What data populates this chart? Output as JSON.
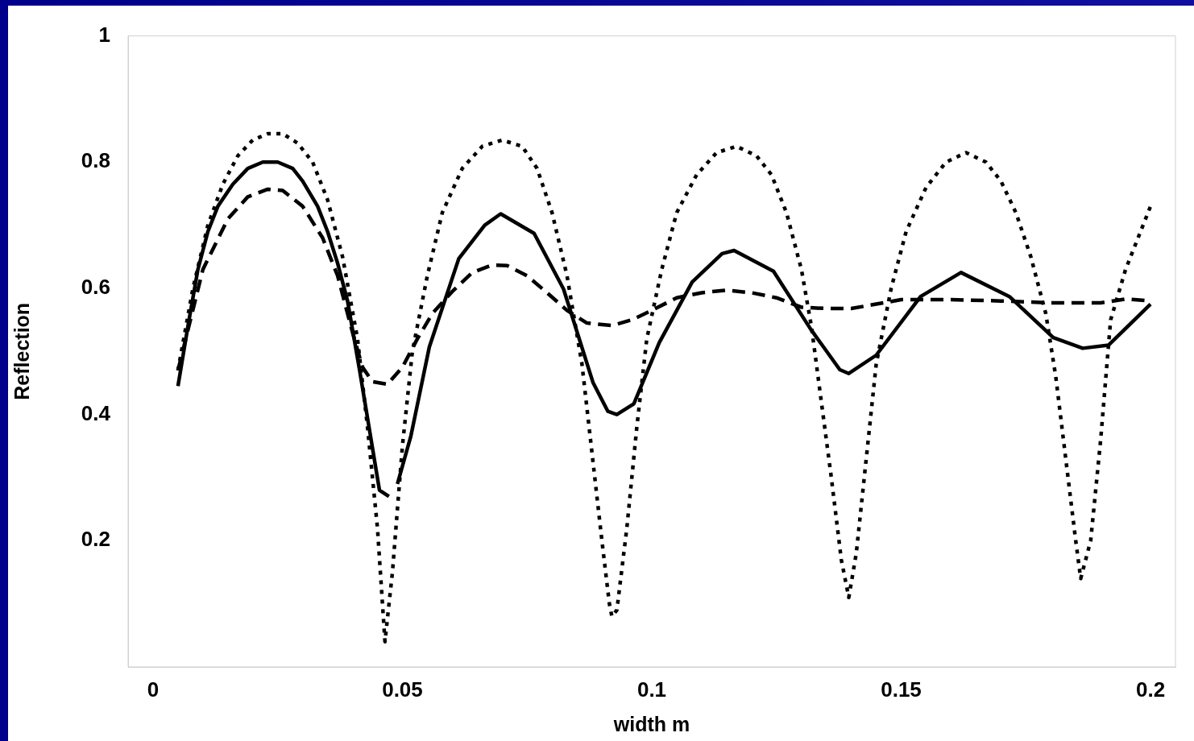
{
  "chart_data": {
    "type": "line",
    "xlabel": "width m",
    "ylabel": "Reflection",
    "xlim": [
      -0.005,
      0.205
    ],
    "xticks": [
      0,
      0.05,
      0.1,
      0.15,
      0.2
    ],
    "ylim": [
      0,
      1
    ],
    "yticks": [
      0.2,
      0.4,
      0.6,
      0.8,
      1
    ],
    "grid": false,
    "legend": false,
    "marker": "none",
    "series": [
      {
        "color": "#000000",
        "line_style": "solid",
        "x": [
          0.005,
          0.007,
          0.009,
          0.011,
          0.013,
          0.016,
          0.019,
          0.022,
          0.025,
          0.028,
          0.03,
          0.033,
          0.035,
          0.037,
          0.039,
          0.0414,
          0.0454,
          0.0473,
          0.048,
          0.049,
          0.0517,
          0.0554,
          0.0613,
          0.0665,
          0.0697,
          0.0764,
          0.0823,
          0.0882,
          0.0912,
          0.093,
          0.0964,
          0.1015,
          0.1081,
          0.1141,
          0.1165,
          0.1244,
          0.1318,
          0.1377,
          0.1395,
          0.145,
          0.1539,
          0.162,
          0.1717,
          0.1805,
          0.1864,
          0.1916,
          0.2
        ],
        "values": [
          0.445,
          0.54,
          0.63,
          0.69,
          0.73,
          0.765,
          0.79,
          0.8,
          0.8,
          0.79,
          0.77,
          0.73,
          0.69,
          0.64,
          0.58,
          0.471,
          0.28,
          0.27,
          null,
          0.29,
          0.366,
          0.507,
          0.647,
          0.7,
          0.718,
          0.687,
          0.599,
          0.451,
          0.405,
          0.4,
          0.417,
          0.514,
          0.61,
          0.655,
          0.66,
          0.627,
          0.536,
          0.471,
          0.465,
          0.494,
          0.587,
          0.625,
          0.587,
          0.522,
          0.505,
          0.51,
          0.575
        ]
      },
      {
        "color": "#000000",
        "line_style": "dashed",
        "x": [
          0.005,
          0.01,
          0.015,
          0.019,
          0.023,
          0.026,
          0.03,
          0.034,
          0.037,
          0.04,
          0.042,
          0.044,
          0.047,
          0.05,
          0.053,
          0.056,
          0.06,
          0.064,
          0.068,
          0.071,
          0.075,
          0.079,
          0.083,
          0.087,
          0.092,
          0.096,
          0.1,
          0.105,
          0.11,
          0.115,
          0.12,
          0.125,
          0.13,
          0.135,
          0.14,
          0.145,
          0.15,
          0.16,
          0.17,
          0.18,
          0.19,
          0.195,
          0.2
        ],
        "values": [
          0.47,
          0.63,
          0.71,
          0.745,
          0.757,
          0.755,
          0.73,
          0.68,
          0.62,
          0.53,
          0.475,
          0.452,
          0.448,
          0.475,
          0.52,
          0.56,
          0.595,
          0.625,
          0.637,
          0.636,
          0.62,
          0.593,
          0.565,
          0.545,
          0.541,
          0.55,
          0.565,
          0.585,
          0.593,
          0.597,
          0.593,
          0.585,
          0.57,
          0.568,
          0.568,
          0.575,
          0.582,
          0.582,
          0.58,
          0.577,
          0.577,
          0.583,
          0.58
        ]
      },
      {
        "color": "#000000",
        "line_style": "dotted",
        "x": [
          0.005,
          0.008,
          0.011,
          0.014,
          0.017,
          0.02,
          0.023,
          0.026,
          0.029,
          0.032,
          0.035,
          0.038,
          0.041,
          0.043,
          0.045,
          0.046,
          0.0465,
          0.048,
          0.05,
          0.052,
          0.055,
          0.058,
          0.062,
          0.066,
          0.07,
          0.074,
          0.077,
          0.08,
          0.083,
          0.086,
          0.088,
          0.09,
          0.0915,
          0.092,
          0.093,
          0.095,
          0.097,
          0.099,
          0.102,
          0.105,
          0.109,
          0.113,
          0.117,
          0.121,
          0.124,
          0.127,
          0.13,
          0.132,
          0.134,
          0.136,
          0.138,
          0.1395,
          0.141,
          0.143,
          0.145,
          0.148,
          0.151,
          0.155,
          0.159,
          0.163,
          0.167,
          0.17,
          0.173,
          0.176,
          0.179,
          0.181,
          0.183,
          0.185,
          0.186,
          0.188,
          0.19,
          0.192,
          0.195,
          0.198,
          0.2
        ],
        "values": [
          0.47,
          0.6,
          0.7,
          0.765,
          0.81,
          0.835,
          0.845,
          0.845,
          0.83,
          0.8,
          0.74,
          0.65,
          0.52,
          0.38,
          0.22,
          0.1,
          0.04,
          0.15,
          0.35,
          0.5,
          0.62,
          0.72,
          0.79,
          0.825,
          0.835,
          0.825,
          0.79,
          0.72,
          0.62,
          0.48,
          0.34,
          0.2,
          0.1,
          0.08,
          0.09,
          0.22,
          0.38,
          0.52,
          0.63,
          0.72,
          0.78,
          0.815,
          0.825,
          0.81,
          0.78,
          0.72,
          0.63,
          0.54,
          0.42,
          0.3,
          0.17,
          0.11,
          0.18,
          0.33,
          0.48,
          0.6,
          0.69,
          0.76,
          0.8,
          0.815,
          0.8,
          0.77,
          0.72,
          0.65,
          0.56,
          0.46,
          0.33,
          0.2,
          0.14,
          0.2,
          0.36,
          0.55,
          0.63,
          0.69,
          0.73
        ]
      }
    ]
  }
}
